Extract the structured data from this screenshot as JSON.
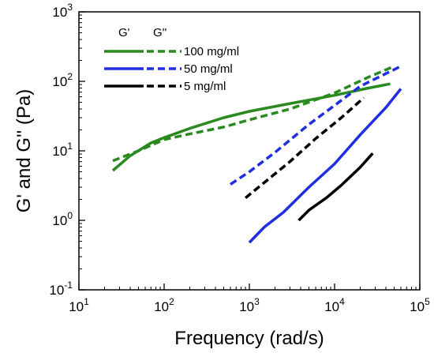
{
  "chart_data": {
    "type": "line",
    "xlabel": "Frequency (rad/s)",
    "ylabel": "G' and G'' (Pa)",
    "x_scale": "log",
    "y_scale": "log",
    "xlim": [
      10,
      100000
    ],
    "ylim": [
      0.1,
      1000
    ],
    "x_ticks": [
      {
        "base": "10",
        "exp": "1"
      },
      {
        "base": "10",
        "exp": "2"
      },
      {
        "base": "10",
        "exp": "3"
      },
      {
        "base": "10",
        "exp": "4"
      },
      {
        "base": "10",
        "exp": "5"
      }
    ],
    "y_ticks": [
      {
        "base": "10",
        "exp": "-1"
      },
      {
        "base": "10",
        "exp": "0"
      },
      {
        "base": "10",
        "exp": "1"
      },
      {
        "base": "10",
        "exp": "2"
      },
      {
        "base": "10",
        "exp": "3"
      }
    ],
    "legend": {
      "placement": "top-left",
      "headers": [
        "G'",
        "G''"
      ],
      "entries": [
        {
          "label": "100 mg/ml",
          "color": "#2a8a1f"
        },
        {
          "label": "50 mg/ml",
          "color": "#1f2fe0"
        },
        {
          "label": "5 mg/ml",
          "color": "#000000"
        }
      ]
    },
    "series": [
      {
        "group": "100 mg/ml",
        "modulus": "G'",
        "style": "solid",
        "color": "#2a8a1f",
        "points": [
          [
            25,
            5.2
          ],
          [
            40,
            8.5
          ],
          [
            70,
            13
          ],
          [
            100,
            15.5
          ],
          [
            200,
            21
          ],
          [
            500,
            30
          ],
          [
            1000,
            37
          ],
          [
            3000,
            48
          ],
          [
            10000,
            63
          ],
          [
            25000,
            80
          ],
          [
            45000,
            92
          ]
        ]
      },
      {
        "group": "100 mg/ml",
        "modulus": "G''",
        "style": "dashed",
        "color": "#2a8a1f",
        "points": [
          [
            25,
            7.2
          ],
          [
            50,
            10
          ],
          [
            100,
            14.5
          ],
          [
            200,
            17.5
          ],
          [
            500,
            22
          ],
          [
            1000,
            28
          ],
          [
            3000,
            40
          ],
          [
            10000,
            68
          ],
          [
            25000,
            115
          ],
          [
            50000,
            165
          ]
        ]
      },
      {
        "group": "50 mg/ml",
        "modulus": "G'",
        "style": "solid",
        "color": "#1f2fe0",
        "points": [
          [
            1000,
            0.48
          ],
          [
            1500,
            0.8
          ],
          [
            2500,
            1.3
          ],
          [
            5000,
            3
          ],
          [
            10000,
            6.5
          ],
          [
            20000,
            17
          ],
          [
            40000,
            42
          ],
          [
            60000,
            78
          ]
        ]
      },
      {
        "group": "50 mg/ml",
        "modulus": "G''",
        "style": "dashed",
        "color": "#1f2fe0",
        "points": [
          [
            600,
            3.3
          ],
          [
            1000,
            5
          ],
          [
            2000,
            9.5
          ],
          [
            5000,
            24
          ],
          [
            10000,
            45
          ],
          [
            20000,
            85
          ],
          [
            60000,
            165
          ]
        ]
      },
      {
        "group": "5 mg/ml",
        "modulus": "G'",
        "style": "solid",
        "color": "#000000",
        "points": [
          [
            3800,
            1.0
          ],
          [
            5000,
            1.4
          ],
          [
            8000,
            2.1
          ],
          [
            12000,
            3.2
          ],
          [
            20000,
            5.8
          ],
          [
            28000,
            9.2
          ]
        ]
      },
      {
        "group": "5 mg/ml",
        "modulus": "G''",
        "style": "dashed",
        "color": "#000000",
        "points": [
          [
            900,
            2.1
          ],
          [
            1500,
            3.5
          ],
          [
            3000,
            7
          ],
          [
            6000,
            15
          ],
          [
            12000,
            30
          ],
          [
            22000,
            58
          ]
        ]
      }
    ]
  }
}
